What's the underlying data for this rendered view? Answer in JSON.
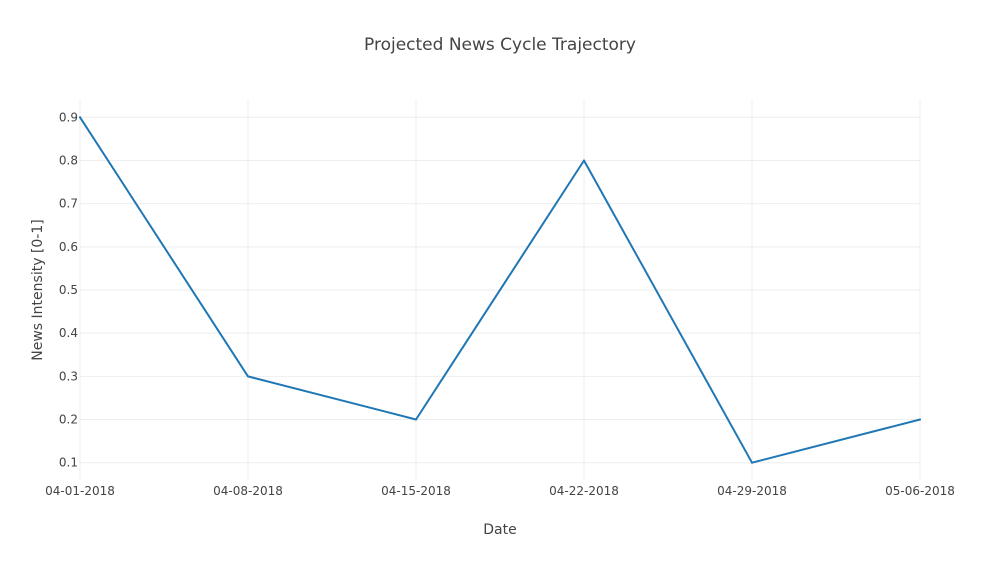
{
  "chart_data": {
    "type": "line",
    "title": "Projected News Cycle Trajectory",
    "xlabel": "Date",
    "ylabel": "News Intensity [0-1]",
    "x": [
      "04-01-2018",
      "04-08-2018",
      "04-15-2018",
      "04-22-2018",
      "04-29-2018",
      "05-06-2018"
    ],
    "x_tick_labels": [
      "04-01-2018",
      "04-08-2018",
      "04-15-2018",
      "04-22-2018",
      "04-29-2018",
      "05-06-2018"
    ],
    "series": [
      {
        "values": [
          0.9,
          0.3,
          0.2,
          0.8,
          0.1,
          0.2
        ],
        "color": "#1f77b4"
      }
    ],
    "y_ticks": [
      0.1,
      0.2,
      0.3,
      0.4,
      0.5,
      0.6,
      0.7,
      0.8,
      0.9
    ],
    "y_tick_labels": [
      "0.1",
      "0.2",
      "0.3",
      "0.4",
      "0.5",
      "0.6",
      "0.7",
      "0.8",
      "0.9"
    ],
    "ylim": [
      0.06,
      0.94
    ],
    "grid": true,
    "legend": false
  }
}
